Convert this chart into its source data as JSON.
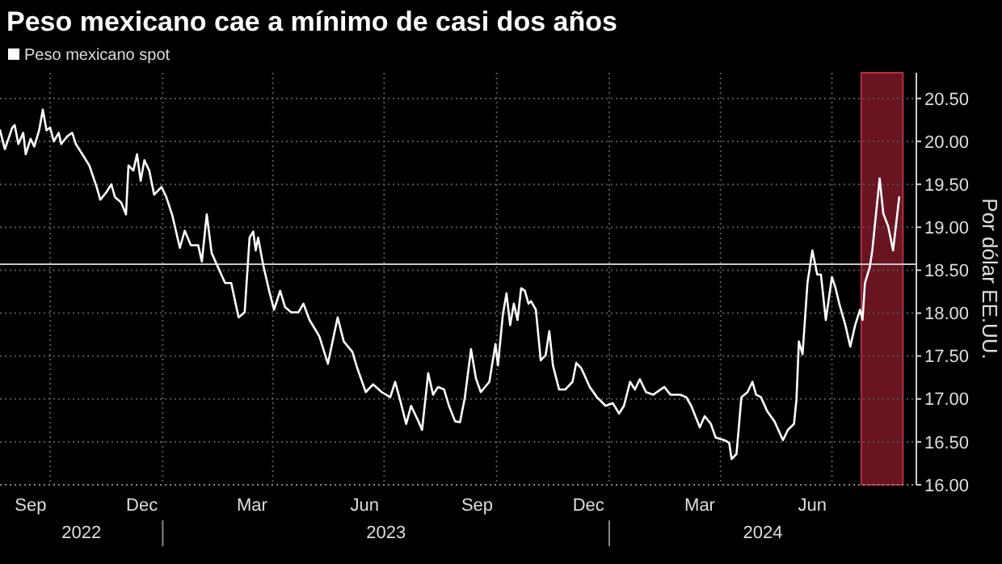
{
  "chart_data": {
    "type": "line",
    "title": "Peso mexicano cae a mínimo de casi dos años",
    "ylabel": "Por dólar EE.UU.",
    "legend": "top left",
    "grid": true,
    "marker": "none",
    "line_style": "solid",
    "xlim": [
      "2022-08-21",
      "2024-09-08"
    ],
    "ylim": [
      16,
      20.8
    ],
    "yticks": [
      {
        "value": 16,
        "label": "16.00"
      },
      {
        "value": 16.5,
        "label": "16.50"
      },
      {
        "value": 17,
        "label": "17.00"
      },
      {
        "value": 17.5,
        "label": "17.50"
      },
      {
        "value": 18,
        "label": "18.00"
      },
      {
        "value": 18.5,
        "label": "18.50"
      },
      {
        "value": 19,
        "label": "19.00"
      },
      {
        "value": 19.5,
        "label": "19.50"
      },
      {
        "value": 20,
        "label": "20.00"
      },
      {
        "value": 20.5,
        "label": "20.50"
      }
    ],
    "xticks": [
      {
        "value": "2022-09-15",
        "label": "Sep"
      },
      {
        "value": "2022-10-01",
        "label": null
      },
      {
        "value": "2022-12-15",
        "label": "Dec"
      },
      {
        "value": "2023-01-01",
        "label": null
      },
      {
        "value": "2023-03-15",
        "label": "Mar"
      },
      {
        "value": "2023-04-01",
        "label": null
      },
      {
        "value": "2023-06-15",
        "label": "Jun"
      },
      {
        "value": "2023-07-01",
        "label": null
      },
      {
        "value": "2023-09-15",
        "label": "Sep"
      },
      {
        "value": "2023-10-01",
        "label": null
      },
      {
        "value": "2023-12-15",
        "label": "Dec"
      },
      {
        "value": "2024-01-01",
        "label": null
      },
      {
        "value": "2024-03-15",
        "label": "Mar"
      },
      {
        "value": "2024-04-01",
        "label": null
      },
      {
        "value": "2024-06-15",
        "label": "Jun"
      },
      {
        "value": "2024-07-01",
        "label": null
      }
    ],
    "annotations": [
      "2022",
      "2023",
      "2024"
    ],
    "ref_lines": [
      {
        "axis": "y",
        "value": 18.57,
        "color": "#c8c8c8"
      }
    ],
    "bands": [
      {
        "axis": "x",
        "from": "2024-07-25",
        "to": "2024-08-28",
        "color": "#8c1c2c"
      }
    ],
    "series": [
      {
        "name": "Peso mexicano spot",
        "color": "#ffffff",
        "x": [
          "2022-08-21",
          "2022-08-25",
          "2022-08-31",
          "2022-09-02",
          "2022-09-05",
          "2022-09-09",
          "2022-09-11",
          "2022-09-15",
          "2022-09-18",
          "2022-09-22",
          "2022-09-25",
          "2022-09-28",
          "2022-10-01",
          "2022-10-04",
          "2022-10-08",
          "2022-10-10",
          "2022-10-15",
          "2022-10-19",
          "2022-10-22",
          "2022-10-26",
          "2022-11-02",
          "2022-11-08",
          "2022-11-11",
          "2022-11-16",
          "2022-11-20",
          "2022-11-23",
          "2022-11-28",
          "2022-12-02",
          "2022-12-04",
          "2022-12-08",
          "2022-12-11",
          "2022-12-14",
          "2022-12-17",
          "2022-12-21",
          "2022-12-25",
          "2022-12-31",
          "2023-01-04",
          "2023-01-09",
          "2023-01-15",
          "2023-01-19",
          "2023-01-24",
          "2023-01-30",
          "2023-02-02",
          "2023-02-06",
          "2023-02-10",
          "2023-02-15",
          "2023-02-21",
          "2023-02-26",
          "2023-03-04",
          "2023-03-09",
          "2023-03-13",
          "2023-03-16",
          "2023-03-18",
          "2023-03-20",
          "2023-03-24",
          "2023-03-29",
          "2023-04-02",
          "2023-04-07",
          "2023-04-11",
          "2023-04-16",
          "2023-04-22",
          "2023-04-26",
          "2023-05-01",
          "2023-05-09",
          "2023-05-16",
          "2023-05-24",
          "2023-05-29",
          "2023-06-05",
          "2023-06-09",
          "2023-06-16",
          "2023-06-22",
          "2023-06-29",
          "2023-07-06",
          "2023-07-10",
          "2023-07-14",
          "2023-07-19",
          "2023-07-23",
          "2023-07-29",
          "2023-08-01",
          "2023-08-06",
          "2023-08-10",
          "2023-08-14",
          "2023-08-19",
          "2023-08-23",
          "2023-08-28",
          "2023-09-01",
          "2023-09-05",
          "2023-09-10",
          "2023-09-14",
          "2023-09-18",
          "2023-09-25",
          "2023-09-30",
          "2023-10-02",
          "2023-10-06",
          "2023-10-09",
          "2023-10-12",
          "2023-10-15",
          "2023-10-18",
          "2023-10-21",
          "2023-10-24",
          "2023-10-27",
          "2023-10-29",
          "2023-11-02",
          "2023-11-06",
          "2023-11-10",
          "2023-11-13",
          "2023-11-16",
          "2023-11-21",
          "2023-11-26",
          "2023-12-02",
          "2023-12-05",
          "2023-12-09",
          "2023-12-11",
          "2023-12-16",
          "2023-12-22",
          "2023-12-29",
          "2024-01-04",
          "2024-01-09",
          "2024-01-13",
          "2024-01-18",
          "2024-01-22",
          "2024-01-26",
          "2024-01-31",
          "2024-02-06",
          "2024-02-15",
          "2024-02-20",
          "2024-02-28",
          "2024-03-04",
          "2024-03-08",
          "2024-03-15",
          "2024-03-19",
          "2024-03-24",
          "2024-03-28",
          "2024-04-04",
          "2024-04-08",
          "2024-04-10",
          "2024-04-14",
          "2024-04-18",
          "2024-04-23",
          "2024-04-27",
          "2024-04-30",
          "2024-05-04",
          "2024-05-09",
          "2024-05-15",
          "2024-05-22",
          "2024-05-26",
          "2024-05-31",
          "2024-06-02",
          "2024-06-04",
          "2024-06-07",
          "2024-06-11",
          "2024-06-15",
          "2024-06-19",
          "2024-06-22",
          "2024-06-26",
          "2024-07-01",
          "2024-07-04",
          "2024-07-07",
          "2024-07-12",
          "2024-07-16",
          "2024-07-20",
          "2024-07-24",
          "2024-07-26",
          "2024-07-28",
          "2024-08-01",
          "2024-08-03",
          "2024-08-09",
          "2024-08-12",
          "2024-08-16",
          "2024-08-20",
          "2024-08-25"
        ],
        "values": [
          20.13,
          19.91,
          20.16,
          20.19,
          19.97,
          20.1,
          19.85,
          20.03,
          19.94,
          20.13,
          20.37,
          20.13,
          20.16,
          20.0,
          20.1,
          19.97,
          20.06,
          20.1,
          19.97,
          19.88,
          19.72,
          19.47,
          19.32,
          19.41,
          19.5,
          19.35,
          19.29,
          19.15,
          19.72,
          19.66,
          19.85,
          19.54,
          19.78,
          19.66,
          19.38,
          19.47,
          19.35,
          19.13,
          18.76,
          18.96,
          18.79,
          18.79,
          18.6,
          19.15,
          18.7,
          18.54,
          18.35,
          18.35,
          17.95,
          18.01,
          18.88,
          18.95,
          18.73,
          18.88,
          18.57,
          18.26,
          18.04,
          18.26,
          18.07,
          18.01,
          18.01,
          18.11,
          17.92,
          17.73,
          17.41,
          17.95,
          17.67,
          17.55,
          17.36,
          17.08,
          17.17,
          17.08,
          17.02,
          17.2,
          16.99,
          16.71,
          16.92,
          16.74,
          16.64,
          17.3,
          17.05,
          17.14,
          17.11,
          16.92,
          16.74,
          16.73,
          17.02,
          17.58,
          17.24,
          17.08,
          17.2,
          17.64,
          17.39,
          17.98,
          18.23,
          17.86,
          18.11,
          17.92,
          18.29,
          18.26,
          18.11,
          18.14,
          18.04,
          17.45,
          17.51,
          17.79,
          17.39,
          17.11,
          17.11,
          17.2,
          17.42,
          17.36,
          17.3,
          17.14,
          17.02,
          16.92,
          16.95,
          16.83,
          16.92,
          17.2,
          17.11,
          17.23,
          17.08,
          17.05,
          17.14,
          17.05,
          17.05,
          17.02,
          16.92,
          16.67,
          16.8,
          16.71,
          16.55,
          16.52,
          16.49,
          16.3,
          16.36,
          17.02,
          17.08,
          17.2,
          17.05,
          17.02,
          16.86,
          16.74,
          16.52,
          16.64,
          16.71,
          16.99,
          17.67,
          17.52,
          18.35,
          18.73,
          18.45,
          18.45,
          17.92,
          18.42,
          18.29,
          18.11,
          17.86,
          17.61,
          17.86,
          18.04,
          17.92,
          18.35,
          18.54,
          18.73,
          19.57,
          19.16,
          19.01,
          18.73,
          19.35
        ]
      }
    ]
  }
}
